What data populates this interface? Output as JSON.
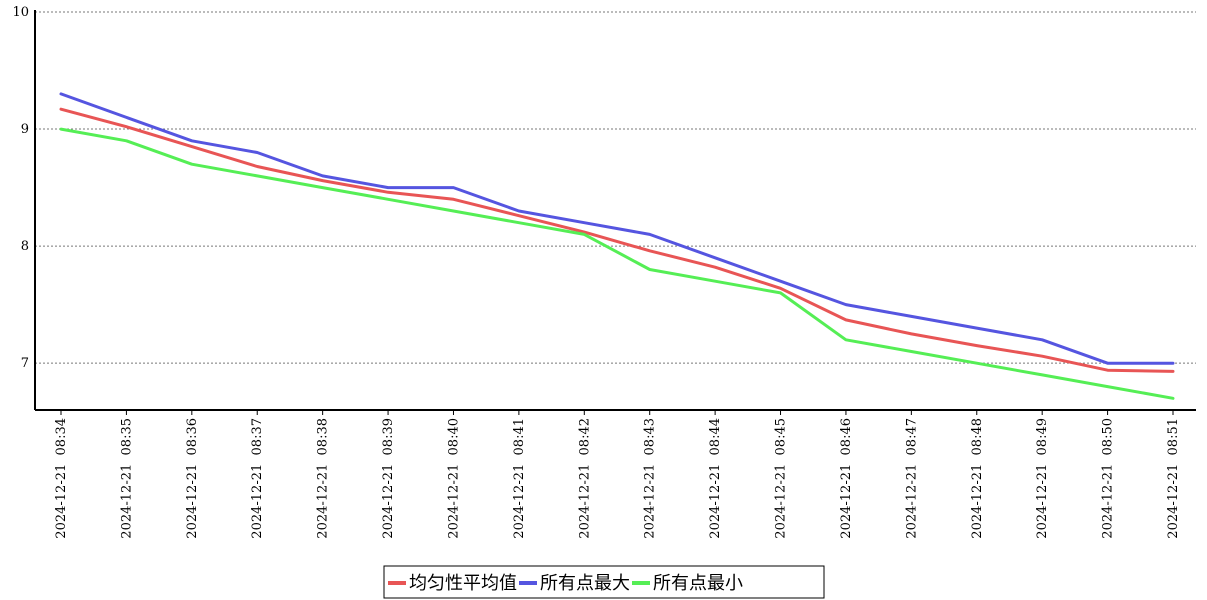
{
  "chart_data": {
    "type": "line",
    "title": "",
    "xlabel": "",
    "ylabel": "",
    "ylim": [
      6.6,
      10
    ],
    "yticks": [
      7,
      8,
      9,
      10
    ],
    "grid": "horizontal-dotted",
    "legend_placement": "bottom-center",
    "x": [
      "2024-12-21 08:34",
      "2024-12-21 08:35",
      "2024-12-21 08:36",
      "2024-12-21 08:37",
      "2024-12-21 08:38",
      "2024-12-21 08:39",
      "2024-12-21 08:40",
      "2024-12-21 08:41",
      "2024-12-21 08:42",
      "2024-12-21 08:43",
      "2024-12-21 08:44",
      "2024-12-21 08:45",
      "2024-12-21 08:46",
      "2024-12-21 08:47",
      "2024-12-21 08:48",
      "2024-12-21 08:49",
      "2024-12-21 08:50",
      "2024-12-21 08:51"
    ],
    "series": [
      {
        "name": "均匀性平均值",
        "color": "#e85555",
        "values": [
          9.17,
          9.02,
          8.85,
          8.68,
          8.56,
          8.46,
          8.4,
          8.26,
          8.12,
          7.96,
          7.82,
          7.64,
          7.37,
          7.25,
          7.15,
          7.06,
          6.94,
          6.93
        ]
      },
      {
        "name": "所有点最大",
        "color": "#5555e0",
        "values": [
          9.3,
          9.1,
          8.9,
          8.8,
          8.6,
          8.5,
          8.5,
          8.3,
          8.2,
          8.1,
          7.9,
          7.7,
          7.5,
          7.4,
          7.3,
          7.2,
          7.0,
          7.0
        ]
      },
      {
        "name": "所有点最小",
        "color": "#55ee55",
        "values": [
          9.0,
          8.9,
          8.7,
          8.6,
          8.5,
          8.4,
          8.3,
          8.2,
          8.1,
          7.8,
          7.7,
          7.6,
          7.2,
          7.1,
          7.0,
          6.9,
          6.8,
          6.7
        ]
      }
    ]
  }
}
